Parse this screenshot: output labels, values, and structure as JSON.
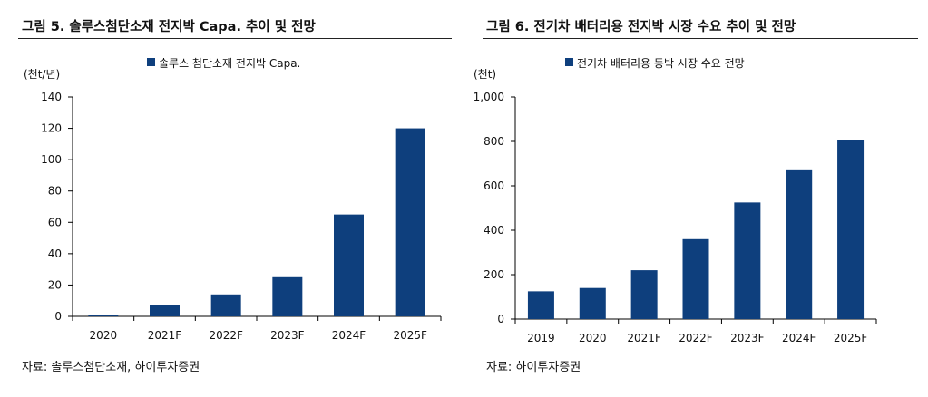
{
  "colors": {
    "bar": "#0e3f7d",
    "axis": "#000000",
    "text": "#111111"
  },
  "figures": [
    {
      "title": "그림 5. 솔루스첨단소재 전지박 Capa. 추이 및 전망",
      "source": "자료: 솔루스첨단소재, 하이투자증권",
      "chart_data": {
        "type": "bar",
        "title": "",
        "unit_label": "(천t/년)",
        "legend": "솔루스 첨단소재 전지박 Capa.",
        "legend_position": "top-center",
        "categories": [
          "2020",
          "2021F",
          "2022F",
          "2023F",
          "2024F",
          "2025F"
        ],
        "values": [
          1,
          7,
          14,
          25,
          65,
          120
        ],
        "ylim": [
          0,
          140
        ],
        "yticks": [
          0,
          20,
          40,
          60,
          80,
          100,
          120,
          140
        ],
        "ytick_labels": [
          "0",
          "20",
          "40",
          "60",
          "80",
          "100",
          "120",
          "140"
        ],
        "xlabel": "",
        "ylabel": "",
        "grid": false
      }
    },
    {
      "title": "그림 6. 전기차 배터리용 전지박 시장 수요 추이 및 전망",
      "source": "자료: 하이투자증권",
      "chart_data": {
        "type": "bar",
        "title": "",
        "unit_label": "(천t)",
        "legend": "전기차 배터리용 동박 시장 수요 전망",
        "legend_position": "top-center",
        "categories": [
          "2019",
          "2020",
          "2021F",
          "2022F",
          "2023F",
          "2024F",
          "2025F"
        ],
        "values": [
          125,
          140,
          220,
          360,
          525,
          670,
          805
        ],
        "ylim": [
          0,
          1000
        ],
        "yticks": [
          0,
          200,
          400,
          600,
          800,
          1000
        ],
        "ytick_labels": [
          "0",
          "200",
          "400",
          "600",
          "800",
          "1,000"
        ],
        "xlabel": "",
        "ylabel": "",
        "grid": false
      }
    }
  ]
}
